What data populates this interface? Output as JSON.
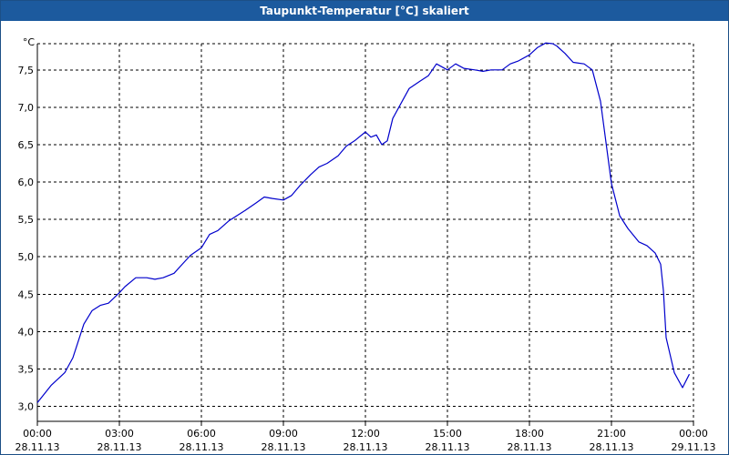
{
  "window": {
    "title": "Taupunkt-Temperatur [°C] skaliert"
  },
  "colors": {
    "titlebar": "#1c5a9e",
    "line": "#0000cc",
    "grid": "#000000"
  },
  "chart_data": {
    "type": "line",
    "title": "Taupunkt-Temperatur [°C] skaliert",
    "ylabel": "°C",
    "xlabel": "",
    "ylim": [
      2.8,
      7.85
    ],
    "y_ticks": [
      "3,0",
      "3,5",
      "4,0",
      "4,5",
      "5,0",
      "5,5",
      "6,0",
      "6,5",
      "7,0",
      "7,5"
    ],
    "y_tick_values": [
      3.0,
      3.5,
      4.0,
      4.5,
      5.0,
      5.5,
      6.0,
      6.5,
      7.0,
      7.5
    ],
    "x_ticks": [
      {
        "time": "00:00",
        "date": "28.11.13"
      },
      {
        "time": "03:00",
        "date": "28.11.13"
      },
      {
        "time": "06:00",
        "date": "28.11.13"
      },
      {
        "time": "09:00",
        "date": "28.11.13"
      },
      {
        "time": "12:00",
        "date": "28.11.13"
      },
      {
        "time": "15:00",
        "date": "28.11.13"
      },
      {
        "time": "18:00",
        "date": "28.11.13"
      },
      {
        "time": "21:00",
        "date": "28.11.13"
      },
      {
        "time": "00:00",
        "date": "29.11.13"
      }
    ],
    "grid": true,
    "series": [
      {
        "x_unit": "hours since 00:00 28.11.13",
        "x": [
          0,
          0.5,
          1.0,
          1.3,
          1.7,
          2.0,
          2.3,
          2.6,
          3.0,
          3.2,
          3.6,
          3.7,
          4.0,
          4.3,
          4.6,
          5.0,
          5.3,
          5.6,
          6.0,
          6.3,
          6.6,
          7.0,
          7.3,
          7.6,
          8.0,
          8.3,
          8.6,
          9.0,
          9.3,
          9.6,
          10.0,
          10.3,
          10.6,
          11.0,
          11.3,
          11.6,
          12.0,
          12.2,
          12.4,
          12.6,
          12.8,
          13.0,
          13.3,
          13.6,
          14.0,
          14.3,
          14.6,
          15.0,
          15.3,
          15.6,
          16.0,
          16.3,
          16.6,
          17.0,
          17.3,
          17.6,
          18.0,
          18.3,
          18.6,
          18.85,
          19.0,
          19.3,
          19.6,
          20.0,
          20.3,
          20.6,
          21.0,
          21.3,
          21.6,
          22.0,
          22.3,
          22.6,
          22.8,
          22.9,
          23.0,
          23.3,
          23.6,
          23.85
        ],
        "y": [
          3.05,
          3.28,
          3.45,
          3.65,
          4.1,
          4.28,
          4.35,
          4.38,
          4.52,
          4.6,
          4.72,
          4.72,
          4.72,
          4.7,
          4.72,
          4.78,
          4.9,
          5.02,
          5.12,
          5.3,
          5.35,
          5.48,
          5.55,
          5.62,
          5.72,
          5.8,
          5.78,
          5.76,
          5.82,
          5.95,
          6.1,
          6.2,
          6.25,
          6.35,
          6.48,
          6.55,
          6.67,
          6.6,
          6.63,
          6.5,
          6.55,
          6.85,
          7.05,
          7.25,
          7.35,
          7.42,
          7.58,
          7.5,
          7.58,
          7.52,
          7.5,
          7.48,
          7.5,
          7.5,
          7.58,
          7.62,
          7.7,
          7.8,
          7.86,
          7.85,
          7.82,
          7.72,
          7.6,
          7.58,
          7.5,
          7.08,
          5.98,
          5.55,
          5.38,
          5.2,
          5.15,
          5.05,
          4.9,
          4.55,
          3.92,
          3.45,
          3.25,
          3.43
        ]
      }
    ]
  }
}
